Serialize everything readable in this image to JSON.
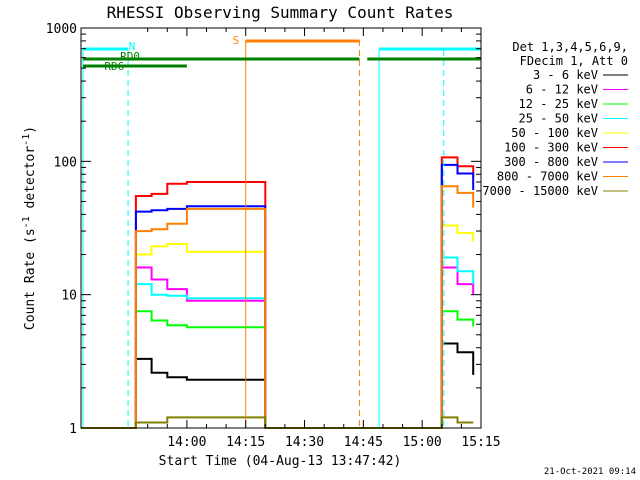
{
  "chart_data": {
    "type": "line",
    "title": "RHESSI Observing Summary Count Rates",
    "xlabel": "Start Time (04-Aug-13 13:47:42)",
    "ylabel_main": "Count Rate (s",
    "ylabel_sup1": "-1",
    "ylabel_mid": " detector",
    "ylabel_sup2": "-1",
    "ylabel_end": ")",
    "y_scale": "log",
    "ylim": [
      1,
      1000
    ],
    "xlim_minutes": [
      -12,
      90
    ],
    "x_ticks": [
      {
        "minute": 15,
        "label": "14:00"
      },
      {
        "minute": 30,
        "label": "14:15"
      },
      {
        "minute": 45,
        "label": "14:30"
      },
      {
        "minute": 60,
        "label": "14:45"
      },
      {
        "minute": 75,
        "label": "15:00"
      },
      {
        "minute": 90,
        "label": "15:15"
      }
    ],
    "y_ticks": [
      {
        "value": 1,
        "label": "1"
      },
      {
        "value": 10,
        "label": "10"
      },
      {
        "value": 100,
        "label": "100"
      },
      {
        "value": 1000,
        "label": "1000"
      }
    ],
    "legend_header": [
      "Det 1,3,4,5,6,9,",
      "FDecim 1, Att 0"
    ],
    "series": [
      {
        "name": "3 - 6 keV",
        "color": "#000000",
        "values": [
          1,
          1,
          3.3,
          2.6,
          2.4,
          2.3,
          1,
          1,
          4.3,
          3.7,
          2.5
        ]
      },
      {
        "name": "6 - 12 keV",
        "color": "#ff00ff",
        "values": [
          1,
          1,
          16,
          13,
          11,
          9,
          1,
          1,
          16,
          12,
          10
        ]
      },
      {
        "name": "12 - 25 keV",
        "color": "#00ff00",
        "values": [
          1,
          1,
          7.5,
          6.4,
          5.9,
          5.7,
          1,
          1,
          7.5,
          6.5,
          5.8
        ]
      },
      {
        "name": "25 - 50 keV",
        "color": "#00ffff",
        "values": [
          1,
          1,
          12,
          10,
          9.8,
          9.4,
          1,
          1,
          19,
          15,
          12
        ]
      },
      {
        "name": "50 - 100 keV",
        "color": "#ffff00",
        "values": [
          1,
          1,
          20,
          23,
          24,
          21,
          1,
          1,
          33,
          29,
          25
        ]
      },
      {
        "name": "100 - 300 keV",
        "color": "#ff0000",
        "values": [
          1,
          1,
          55,
          57,
          68,
          70,
          1,
          1,
          107,
          92,
          76
        ]
      },
      {
        "name": "300 - 800 keV",
        "color": "#0000ff",
        "values": [
          1,
          1,
          42,
          43,
          44,
          46,
          1,
          1,
          94,
          81,
          61
        ]
      },
      {
        "name": "800 - 7000 keV",
        "color": "#ff8000",
        "values": [
          1,
          1,
          30,
          31,
          34,
          44,
          1,
          1,
          65,
          58,
          45
        ]
      },
      {
        "name": "7000 - 15000 keV",
        "color": "#808000",
        "values": [
          1,
          1,
          1.1,
          1.1,
          1.2,
          1.2,
          1,
          1,
          1.2,
          1.1,
          1.1
        ]
      }
    ],
    "sample_minutes": [
      -12,
      0,
      2,
      6,
      10,
      15,
      35,
      75,
      80,
      84,
      88
    ],
    "flags": [
      {
        "label": "N",
        "color": "#00ffff"
      },
      {
        "label": "RD0",
        "color": "#008000"
      },
      {
        "label": "RD6",
        "color": "#008000"
      },
      {
        "label": "S",
        "color": "#ff8000"
      }
    ],
    "timestamp": "21-Oct-2021 09:14"
  }
}
